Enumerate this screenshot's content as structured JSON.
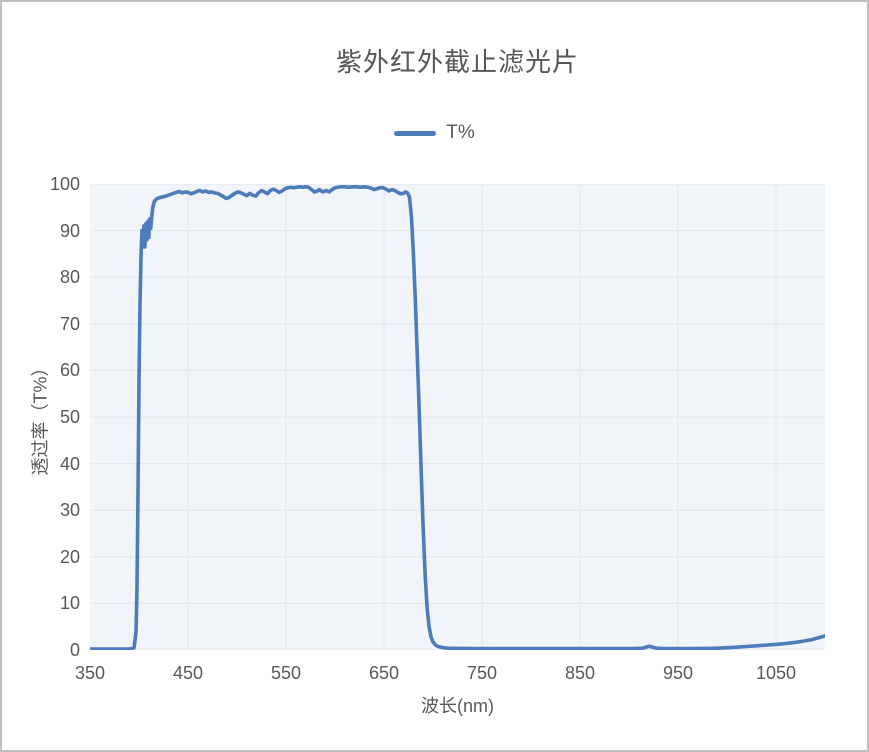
{
  "page": {
    "border_color": "#bfbfbf",
    "background": "#ffffff"
  },
  "chart": {
    "title": "紫外红外截止滤光片",
    "legend": {
      "label": "T%",
      "line_color": "#4d7cba"
    },
    "x_axis": {
      "title": "波长(nm)",
      "min": 350,
      "max": 1100,
      "ticks": [
        350,
        450,
        550,
        650,
        750,
        850,
        950,
        1050
      ]
    },
    "y_axis": {
      "title": "透过率（T%）",
      "min": 0,
      "max": 100,
      "ticks": [
        0,
        10,
        20,
        30,
        40,
        50,
        60,
        70,
        80,
        90,
        100
      ]
    },
    "colors": {
      "plot_background": "#f1f5f9",
      "gridline": "#e2e6eb",
      "text": "#595959",
      "series": "#4d7cba"
    }
  },
  "chart_data": {
    "type": "line",
    "title": "紫外红外截止滤光片",
    "xlabel": "波长(nm)",
    "ylabel": "透过率（T%）",
    "xlim": [
      350,
      1100
    ],
    "ylim": [
      0,
      100
    ],
    "grid": true,
    "legend_position": "top",
    "series": [
      {
        "name": "T%",
        "color": "#4d7cba",
        "points": [
          [
            350,
            0.2
          ],
          [
            360,
            0.2
          ],
          [
            370,
            0.2
          ],
          [
            380,
            0.2
          ],
          [
            388,
            0.2
          ],
          [
            392,
            0.25
          ],
          [
            395,
            0.5
          ],
          [
            397,
            4
          ],
          [
            398,
            14
          ],
          [
            399,
            34
          ],
          [
            400,
            58
          ],
          [
            401,
            74
          ],
          [
            402,
            84
          ],
          [
            403,
            90
          ],
          [
            404,
            86.5
          ],
          [
            405,
            91
          ],
          [
            406,
            86.5
          ],
          [
            407,
            91.5
          ],
          [
            408,
            88
          ],
          [
            409,
            92
          ],
          [
            410,
            88.5
          ],
          [
            411,
            92.5
          ],
          [
            412,
            90.5
          ],
          [
            413,
            93
          ],
          [
            414,
            94.8
          ],
          [
            415,
            95.8
          ],
          [
            416,
            96.4
          ],
          [
            418,
            96.8
          ],
          [
            420,
            97.0
          ],
          [
            423,
            97.2
          ],
          [
            426,
            97.3
          ],
          [
            430,
            97.6
          ],
          [
            434,
            97.9
          ],
          [
            438,
            98.2
          ],
          [
            441,
            98.4
          ],
          [
            444,
            98.1
          ],
          [
            447,
            98.3
          ],
          [
            450,
            98.2
          ],
          [
            453,
            97.9
          ],
          [
            456,
            98.1
          ],
          [
            459,
            98.4
          ],
          [
            462,
            98.6
          ],
          [
            465,
            98.3
          ],
          [
            468,
            98.5
          ],
          [
            471,
            98.2
          ],
          [
            474,
            98.3
          ],
          [
            477,
            98.1
          ],
          [
            480,
            98.0
          ],
          [
            483,
            97.7
          ],
          [
            486,
            97.3
          ],
          [
            489,
            96.9
          ],
          [
            492,
            97.1
          ],
          [
            495,
            97.6
          ],
          [
            498,
            98.0
          ],
          [
            501,
            98.3
          ],
          [
            504,
            98.1
          ],
          [
            507,
            97.8
          ],
          [
            510,
            97.5
          ],
          [
            513,
            98.0
          ],
          [
            516,
            97.6
          ],
          [
            519,
            97.4
          ],
          [
            522,
            98.1
          ],
          [
            525,
            98.6
          ],
          [
            528,
            98.3
          ],
          [
            531,
            97.9
          ],
          [
            534,
            98.6
          ],
          [
            537,
            98.9
          ],
          [
            540,
            98.6
          ],
          [
            543,
            98.2
          ],
          [
            546,
            98.5
          ],
          [
            549,
            99.0
          ],
          [
            552,
            99.2
          ],
          [
            555,
            99.3
          ],
          [
            558,
            99.2
          ],
          [
            561,
            99.3
          ],
          [
            564,
            99.4
          ],
          [
            567,
            99.3
          ],
          [
            570,
            99.4
          ],
          [
            573,
            99.3
          ],
          [
            576,
            98.8
          ],
          [
            579,
            98.3
          ],
          [
            582,
            98.5
          ],
          [
            584,
            98.8
          ],
          [
            586,
            98.5
          ],
          [
            588,
            98.3
          ],
          [
            591,
            98.6
          ],
          [
            594,
            98.3
          ],
          [
            597,
            98.8
          ],
          [
            600,
            99.2
          ],
          [
            603,
            99.3
          ],
          [
            606,
            99.4
          ],
          [
            610,
            99.4
          ],
          [
            614,
            99.3
          ],
          [
            618,
            99.4
          ],
          [
            622,
            99.4
          ],
          [
            626,
            99.3
          ],
          [
            630,
            99.4
          ],
          [
            634,
            99.3
          ],
          [
            637,
            99.1
          ],
          [
            640,
            98.8
          ],
          [
            643,
            99.0
          ],
          [
            646,
            99.2
          ],
          [
            649,
            99.2
          ],
          [
            652,
            98.9
          ],
          [
            655,
            98.5
          ],
          [
            658,
            98.8
          ],
          [
            661,
            98.6
          ],
          [
            664,
            98.2
          ],
          [
            667,
            97.9
          ],
          [
            670,
            98.0
          ],
          [
            672,
            98.3
          ],
          [
            674,
            98.1
          ],
          [
            676,
            97.2
          ],
          [
            678,
            93
          ],
          [
            680,
            85
          ],
          [
            682,
            75
          ],
          [
            684,
            63
          ],
          [
            686,
            51
          ],
          [
            688,
            38
          ],
          [
            690,
            26
          ],
          [
            692,
            16
          ],
          [
            694,
            9
          ],
          [
            696,
            5
          ],
          [
            698,
            2.8
          ],
          [
            700,
            1.7
          ],
          [
            703,
            1.0
          ],
          [
            706,
            0.7
          ],
          [
            710,
            0.5
          ],
          [
            715,
            0.4
          ],
          [
            725,
            0.35
          ],
          [
            740,
            0.3
          ],
          [
            760,
            0.3
          ],
          [
            780,
            0.3
          ],
          [
            800,
            0.3
          ],
          [
            820,
            0.3
          ],
          [
            840,
            0.3
          ],
          [
            860,
            0.3
          ],
          [
            880,
            0.3
          ],
          [
            900,
            0.3
          ],
          [
            908,
            0.3
          ],
          [
            914,
            0.4
          ],
          [
            918,
            0.65
          ],
          [
            921,
            0.8
          ],
          [
            924,
            0.6
          ],
          [
            928,
            0.4
          ],
          [
            935,
            0.3
          ],
          [
            950,
            0.3
          ],
          [
            965,
            0.3
          ],
          [
            980,
            0.35
          ],
          [
            990,
            0.4
          ],
          [
            1000,
            0.5
          ],
          [
            1010,
            0.6
          ],
          [
            1020,
            0.75
          ],
          [
            1030,
            0.9
          ],
          [
            1040,
            1.05
          ],
          [
            1050,
            1.2
          ],
          [
            1060,
            1.4
          ],
          [
            1070,
            1.65
          ],
          [
            1078,
            1.9
          ],
          [
            1086,
            2.2
          ],
          [
            1093,
            2.6
          ],
          [
            1100,
            3.0
          ]
        ]
      }
    ]
  }
}
